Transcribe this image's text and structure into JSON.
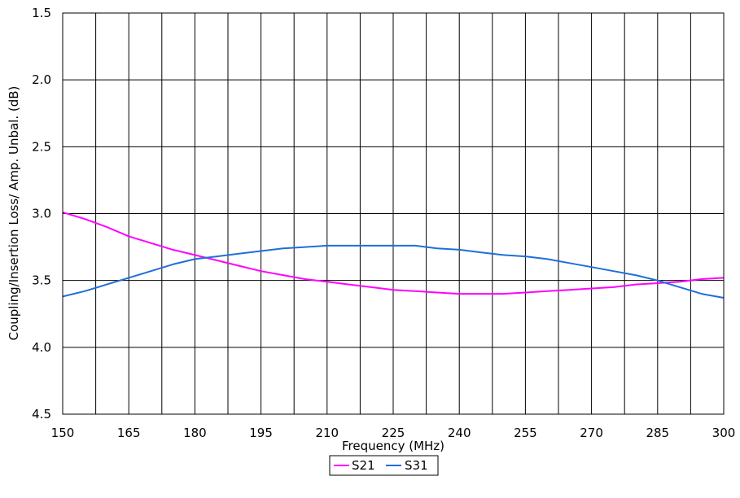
{
  "chart_data": {
    "type": "line",
    "xlabel": "Frequency (MHz)",
    "ylabel": "Coupling/Insertion Loss/ Amp. Unbal.  (dB)",
    "xlim": [
      150,
      300
    ],
    "ylim": [
      1.5,
      4.5
    ],
    "y_reversed": true,
    "x_ticks": [
      150,
      165,
      180,
      195,
      210,
      225,
      240,
      255,
      270,
      285,
      300
    ],
    "y_ticks": [
      1.5,
      2.0,
      2.5,
      3.0,
      3.5,
      4.0,
      4.5
    ],
    "x_tick_labels": [
      "150",
      "165",
      "180",
      "195",
      "210",
      "225",
      "240",
      "255",
      "270",
      "285",
      "300"
    ],
    "y_tick_labels": [
      "1.5",
      "2.0",
      "2.5",
      "3.0",
      "3.5",
      "4.0",
      "4.5"
    ],
    "grid": true,
    "legend_position": "bottom",
    "series": [
      {
        "name": "S21",
        "color": "#ff00ff",
        "x": [
          150,
          155,
          160,
          165,
          170,
          175,
          180,
          185,
          190,
          195,
          200,
          205,
          210,
          215,
          220,
          225,
          230,
          235,
          240,
          245,
          250,
          255,
          260,
          265,
          270,
          275,
          280,
          285,
          290,
          295,
          300
        ],
        "y": [
          2.99,
          3.04,
          3.1,
          3.17,
          3.22,
          3.27,
          3.31,
          3.35,
          3.39,
          3.43,
          3.46,
          3.49,
          3.51,
          3.53,
          3.55,
          3.57,
          3.58,
          3.59,
          3.6,
          3.6,
          3.6,
          3.59,
          3.58,
          3.57,
          3.56,
          3.55,
          3.53,
          3.52,
          3.51,
          3.49,
          3.48
        ]
      },
      {
        "name": "S31",
        "color": "#1e6fd9",
        "x": [
          150,
          155,
          160,
          165,
          170,
          175,
          180,
          185,
          190,
          195,
          200,
          205,
          210,
          215,
          220,
          225,
          230,
          235,
          240,
          245,
          250,
          255,
          260,
          265,
          270,
          275,
          280,
          285,
          290,
          295,
          300
        ],
        "y": [
          3.62,
          3.58,
          3.53,
          3.48,
          3.43,
          3.38,
          3.34,
          3.32,
          3.3,
          3.28,
          3.26,
          3.25,
          3.24,
          3.24,
          3.24,
          3.24,
          3.24,
          3.26,
          3.27,
          3.29,
          3.31,
          3.32,
          3.34,
          3.37,
          3.4,
          3.43,
          3.46,
          3.5,
          3.55,
          3.6,
          3.63
        ]
      }
    ]
  }
}
